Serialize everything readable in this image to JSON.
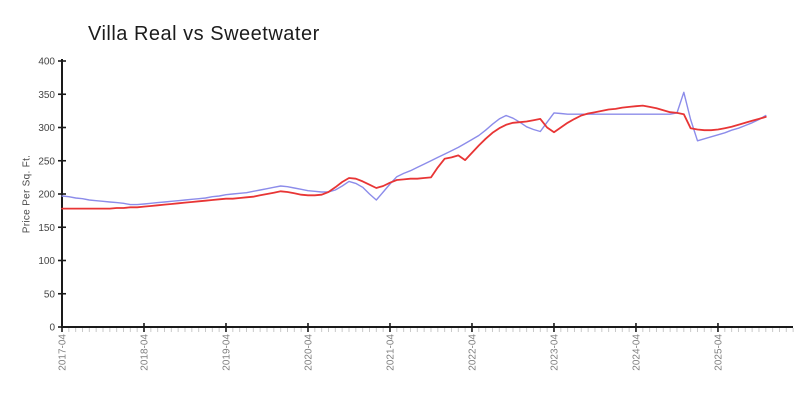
{
  "chart": {
    "title": "Villa Real vs Sweetwater",
    "ylabel": "Price Per Sq. Ft."
  },
  "chart_data": {
    "type": "line",
    "title": "Villa Real vs Sweetwater",
    "xlabel": "",
    "ylabel": "Price Per Sq. Ft.",
    "ylim": [
      0,
      400
    ],
    "ytick_interval": 50,
    "grid": false,
    "legend": "none",
    "xticks": [
      {
        "label": "2017-04",
        "month_index": 0
      },
      {
        "label": "2018-04",
        "month_index": 12
      },
      {
        "label": "2019-04",
        "month_index": 24
      },
      {
        "label": "2020-04",
        "month_index": 36
      },
      {
        "label": "2021-04",
        "month_index": 48
      },
      {
        "label": "2022-04",
        "month_index": 60
      },
      {
        "label": "2023-04",
        "month_index": 72
      },
      {
        "label": "2024-04",
        "month_index": 84
      },
      {
        "label": "2025-04",
        "month_index": 96
      }
    ],
    "x": [
      "2017-04",
      "2017-05",
      "2017-06",
      "2017-07",
      "2017-08",
      "2017-09",
      "2017-10",
      "2017-11",
      "2017-12",
      "2018-01",
      "2018-02",
      "2018-03",
      "2018-04",
      "2018-05",
      "2018-06",
      "2018-07",
      "2018-08",
      "2018-09",
      "2018-10",
      "2018-11",
      "2018-12",
      "2019-01",
      "2019-02",
      "2019-03",
      "2019-04",
      "2019-05",
      "2019-06",
      "2019-07",
      "2019-08",
      "2019-09",
      "2019-10",
      "2019-11",
      "2019-12",
      "2020-01",
      "2020-02",
      "2020-03",
      "2020-04",
      "2020-05",
      "2020-06",
      "2020-07",
      "2020-08",
      "2020-09",
      "2020-10",
      "2020-11",
      "2020-12",
      "2021-01",
      "2021-02",
      "2021-03",
      "2021-04",
      "2021-05",
      "2021-06",
      "2021-07",
      "2021-08",
      "2021-09",
      "2021-10",
      "2021-11",
      "2021-12",
      "2022-01",
      "2022-02",
      "2022-03",
      "2022-04",
      "2022-05",
      "2022-06",
      "2022-07",
      "2022-08",
      "2022-09",
      "2022-10",
      "2022-11",
      "2022-12",
      "2023-01",
      "2023-02",
      "2023-03",
      "2023-04",
      "2023-05",
      "2023-06",
      "2023-07",
      "2023-08",
      "2023-09",
      "2023-10",
      "2023-11",
      "2023-12",
      "2024-01",
      "2024-02",
      "2024-03",
      "2024-04",
      "2024-05",
      "2024-06",
      "2024-07",
      "2024-08",
      "2024-09",
      "2024-10",
      "2024-11",
      "2024-12",
      "2025-01",
      "2025-02",
      "2025-03",
      "2025-04",
      "2025-05",
      "2025-06",
      "2025-07",
      "2025-08",
      "2025-09",
      "2025-10",
      "2025-11"
    ],
    "series": [
      {
        "name": "Villa Real",
        "color": "#8c8cea",
        "values": [
          197,
          196,
          194,
          193,
          191,
          190,
          189,
          188,
          187,
          186,
          184,
          184,
          185,
          186,
          187,
          188,
          189,
          190,
          191,
          192,
          193,
          194,
          196,
          197,
          199,
          200,
          201,
          202,
          204,
          206,
          208,
          210,
          212,
          211,
          209,
          207,
          205,
          204,
          203,
          203,
          206,
          212,
          219,
          216,
          210,
          200,
          191,
          203,
          215,
          226,
          231,
          235,
          240,
          245,
          250,
          255,
          260,
          265,
          270,
          276,
          282,
          288,
          296,
          305,
          313,
          318,
          314,
          308,
          301,
          297,
          294,
          308,
          322,
          321,
          320,
          320,
          320,
          320,
          320,
          320,
          320,
          320,
          320,
          320,
          320,
          320,
          320,
          320,
          320,
          320,
          322,
          353,
          312,
          280,
          283,
          286,
          289,
          292,
          296,
          299,
          303,
          307,
          312,
          318
        ]
      },
      {
        "name": "Sweetwater",
        "color": "#e83535",
        "values": [
          178,
          178,
          178,
          178,
          178,
          178,
          178,
          178,
          179,
          179,
          180,
          180,
          181,
          182,
          183,
          184,
          185,
          186,
          187,
          188,
          189,
          190,
          191,
          192,
          193,
          193,
          194,
          195,
          196,
          198,
          200,
          202,
          204,
          203,
          201,
          199,
          198,
          198,
          199,
          203,
          210,
          218,
          224,
          223,
          219,
          214,
          209,
          212,
          217,
          221,
          222,
          223,
          223,
          224,
          225,
          240,
          253,
          255,
          258,
          251,
          262,
          273,
          283,
          292,
          299,
          304,
          307,
          308,
          309,
          311,
          313,
          300,
          293,
          300,
          307,
          313,
          318,
          321,
          323,
          325,
          327,
          328,
          330,
          331,
          332,
          333,
          331,
          329,
          326,
          323,
          322,
          320,
          299,
          297,
          296,
          296,
          297,
          299,
          301,
          304,
          307,
          310,
          313,
          316
        ]
      }
    ],
    "colors": {
      "axis": "#1a1a1a",
      "minor_tick": "#c9c9c9",
      "x_tick_label": "#808080",
      "y_tick_label": "#444444"
    }
  }
}
